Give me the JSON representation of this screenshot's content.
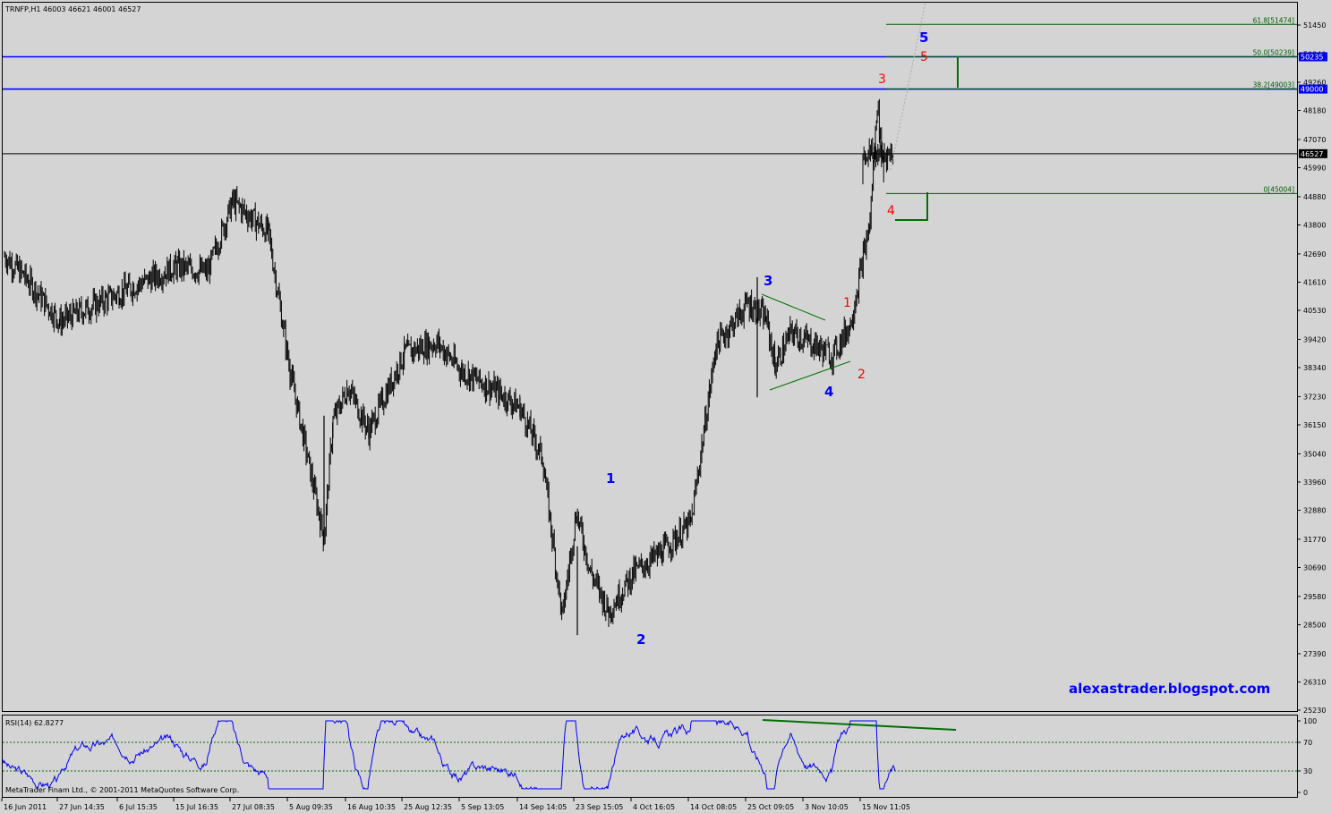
{
  "header": {
    "symbol_info": "TRNFP,H1  46003 46621 46001 46527",
    "rsi_label": "RSI(14) 62.8277",
    "copyright": "MetaTrader Finam Ltd., © 2001-2011 MetaQuotes Software Corp."
  },
  "watermark": "alexastrader.blogspot.com",
  "price_axis": {
    "range": [
      25000,
      52500
    ],
    "ticks": [
      "51450",
      "50340",
      "49260",
      "48180",
      "47070",
      "45990",
      "44880",
      "43800",
      "42690",
      "41610",
      "40530",
      "39420",
      "38340",
      "37230",
      "36150",
      "35040",
      "33960",
      "32880",
      "31770",
      "30690",
      "29580",
      "28500",
      "27390",
      "26310",
      "25230"
    ],
    "tick_values": [
      51450,
      50340,
      49260,
      48180,
      47070,
      45990,
      44880,
      43800,
      42690,
      41610,
      40530,
      39420,
      38340,
      37230,
      36150,
      35040,
      33960,
      32880,
      31770,
      30690,
      29580,
      28500,
      27390,
      26310,
      25230
    ],
    "markers": [
      {
        "label": "50235",
        "value": 50235,
        "color": "#0000ff"
      },
      {
        "label": "49000",
        "value": 49000,
        "color": "#0000ff"
      },
      {
        "label": "46527",
        "value": 46527,
        "color": "#000000"
      }
    ]
  },
  "rsi_axis": {
    "ticks": [
      "100",
      "70",
      "30",
      "0"
    ],
    "tick_values": [
      100,
      70,
      30,
      0
    ],
    "levels": [
      70,
      30
    ]
  },
  "time_axis": {
    "labels": [
      "16 Jun 2011",
      "27 Jun 14:35",
      "6 Jul 15:35",
      "15 Jul 16:35",
      "27 Jul 08:35",
      "5 Aug 09:35",
      "16 Aug 10:35",
      "25 Aug 12:35",
      "5 Sep 13:05",
      "14 Sep 14:05",
      "23 Sep 15:05",
      "4 Oct 16:05",
      "14 Oct 08:05",
      "25 Oct 09:05",
      "3 Nov 10:05",
      "15 Nov 11:05"
    ]
  },
  "horizontal_lines": [
    {
      "value": 50235,
      "color": "#0000ff"
    },
    {
      "value": 49000,
      "color": "#0000ff"
    },
    {
      "value": 46527,
      "color": "#000000"
    }
  ],
  "fibonacci": {
    "color": "#005a00",
    "levels": [
      {
        "label": "61.8[51474]",
        "value": 51474
      },
      {
        "label": "50.0[50239]",
        "value": 50239
      },
      {
        "label": "38.2[49003]",
        "value": 49003
      },
      {
        "label": "0[45004]",
        "value": 45004
      }
    ]
  },
  "wave_labels": {
    "blue": [
      "1",
      "2",
      "3",
      "4",
      "5"
    ],
    "red": [
      "1",
      "2",
      "3",
      "4",
      "5"
    ]
  },
  "chart_data": {
    "type": "candlestick",
    "instrument": "TRNFP",
    "timeframe": "H1",
    "last_bar": {
      "open": 46003,
      "high": 46621,
      "low": 46001,
      "close": 46527
    },
    "x_labels": [
      "16 Jun 2011",
      "27 Jun 14:35",
      "6 Jul 15:35",
      "15 Jul 16:35",
      "27 Jul 08:35",
      "5 Aug 09:35",
      "16 Aug 10:35",
      "25 Aug 12:35",
      "5 Sep 13:05",
      "14 Sep 14:05",
      "23 Sep 15:05",
      "4 Oct 16:05",
      "14 Oct 08:05",
      "25 Oct 09:05",
      "3 Nov 10:05",
      "15 Nov 11:05"
    ],
    "ylim": [
      25000,
      52500
    ],
    "price_path": {
      "x": [
        "16 Jun 2011",
        "21 Jun",
        "27 Jun 14:35",
        "6 Jul 15:35",
        "15 Jul 16:35",
        "20 Jul",
        "27 Jul 08:35",
        "1 Aug",
        "5 Aug 09:35",
        "9 Aug",
        "11 Aug",
        "16 Aug 10:35",
        "20 Aug",
        "25 Aug 12:35",
        "30 Aug",
        "5 Sep 13:05",
        "10 Sep",
        "14 Sep 14:05",
        "19 Sep",
        "20 Sep",
        "23 Sep 15:05",
        "26 Sep",
        "28 Sep",
        "4 Oct 16:05",
        "10 Oct",
        "14 Oct 08:05",
        "20 Oct",
        "25 Oct 09:05",
        "26 Oct",
        "28 Oct",
        "31 Oct",
        "3 Nov 10:05",
        "7 Nov",
        "9 Nov",
        "11 Nov",
        "12 Nov",
        "13 Nov",
        "15 Nov 11:05",
        "16 Nov"
      ],
      "close": [
        42600,
        41800,
        40100,
        41200,
        42200,
        42000,
        44700,
        43500,
        38200,
        31800,
        36300,
        37600,
        35900,
        38900,
        39300,
        38200,
        37500,
        36800,
        34900,
        28800,
        32800,
        30500,
        29000,
        30500,
        31300,
        32400,
        39200,
        40800,
        40200,
        38400,
        39700,
        39400,
        38800,
        40000,
        43900,
        48500,
        45400,
        46527,
        46527
      ]
    },
    "rsi": {
      "name": "RSI(14)",
      "last": 62.8277,
      "levels": [
        70,
        30
      ]
    }
  }
}
